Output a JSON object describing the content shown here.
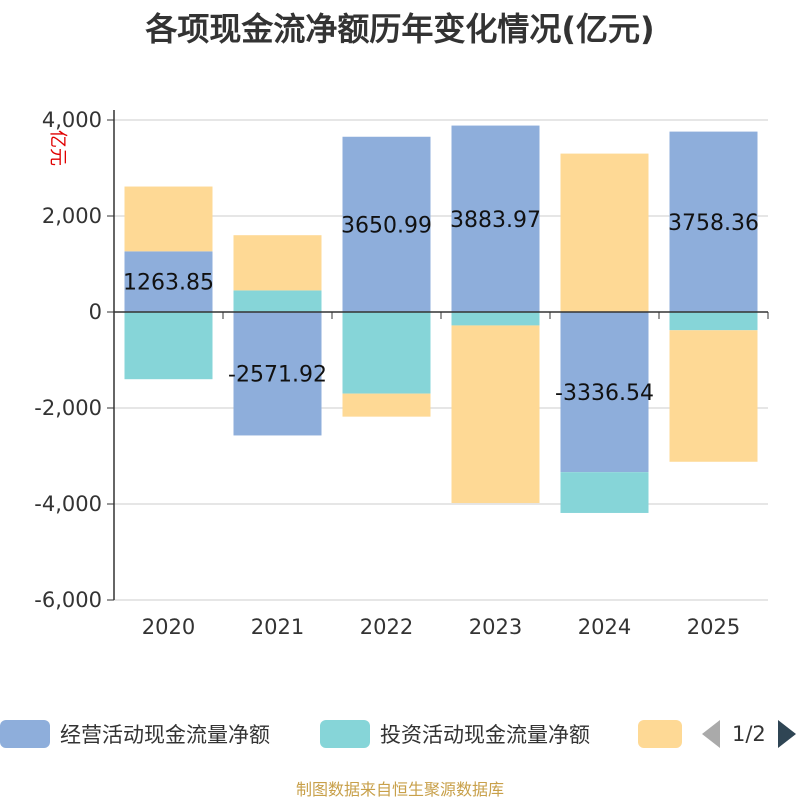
{
  "chart_data": {
    "type": "bar",
    "stacked": true,
    "title": "各项现金流净额历年变化情况(亿元)",
    "ylabel": "亿元",
    "ylim": [
      -6000,
      4000
    ],
    "yticks": [
      4000,
      2000,
      0,
      -2000,
      -4000,
      -6000
    ],
    "ytick_labels": [
      "4,000",
      "2,000",
      "0",
      "-2,000",
      "-4,000",
      "-6,000"
    ],
    "categories": [
      "2020",
      "2021",
      "2022",
      "2023",
      "2024",
      "2025"
    ],
    "series": [
      {
        "name": "经营活动现金流量净额",
        "color": "#8eaedb",
        "values": [
          1263.85,
          -2571.92,
          3650.99,
          3883.97,
          -3336.54,
          3758.36
        ]
      },
      {
        "name": "投资活动现金流量净额",
        "color": "#86d5d8",
        "values": [
          -1400,
          450,
          -1700,
          -280,
          -850,
          -380
        ]
      },
      {
        "name": "",
        "color": "#fed995",
        "values": [
          1350,
          1150,
          -480,
          -3700,
          3300,
          -2740
        ]
      }
    ],
    "data_labels": [
      "1263.85",
      "-2571.92",
      "3650.99",
      "3883.97",
      "-3336.54",
      "3758.36"
    ],
    "grid": true,
    "legend_position": "bottom"
  },
  "legend": {
    "items": [
      "经营活动现金流量净额",
      "投资活动现金流量净额",
      ""
    ],
    "page": "1/2"
  },
  "source": "制图数据来自恒生聚源数据库"
}
